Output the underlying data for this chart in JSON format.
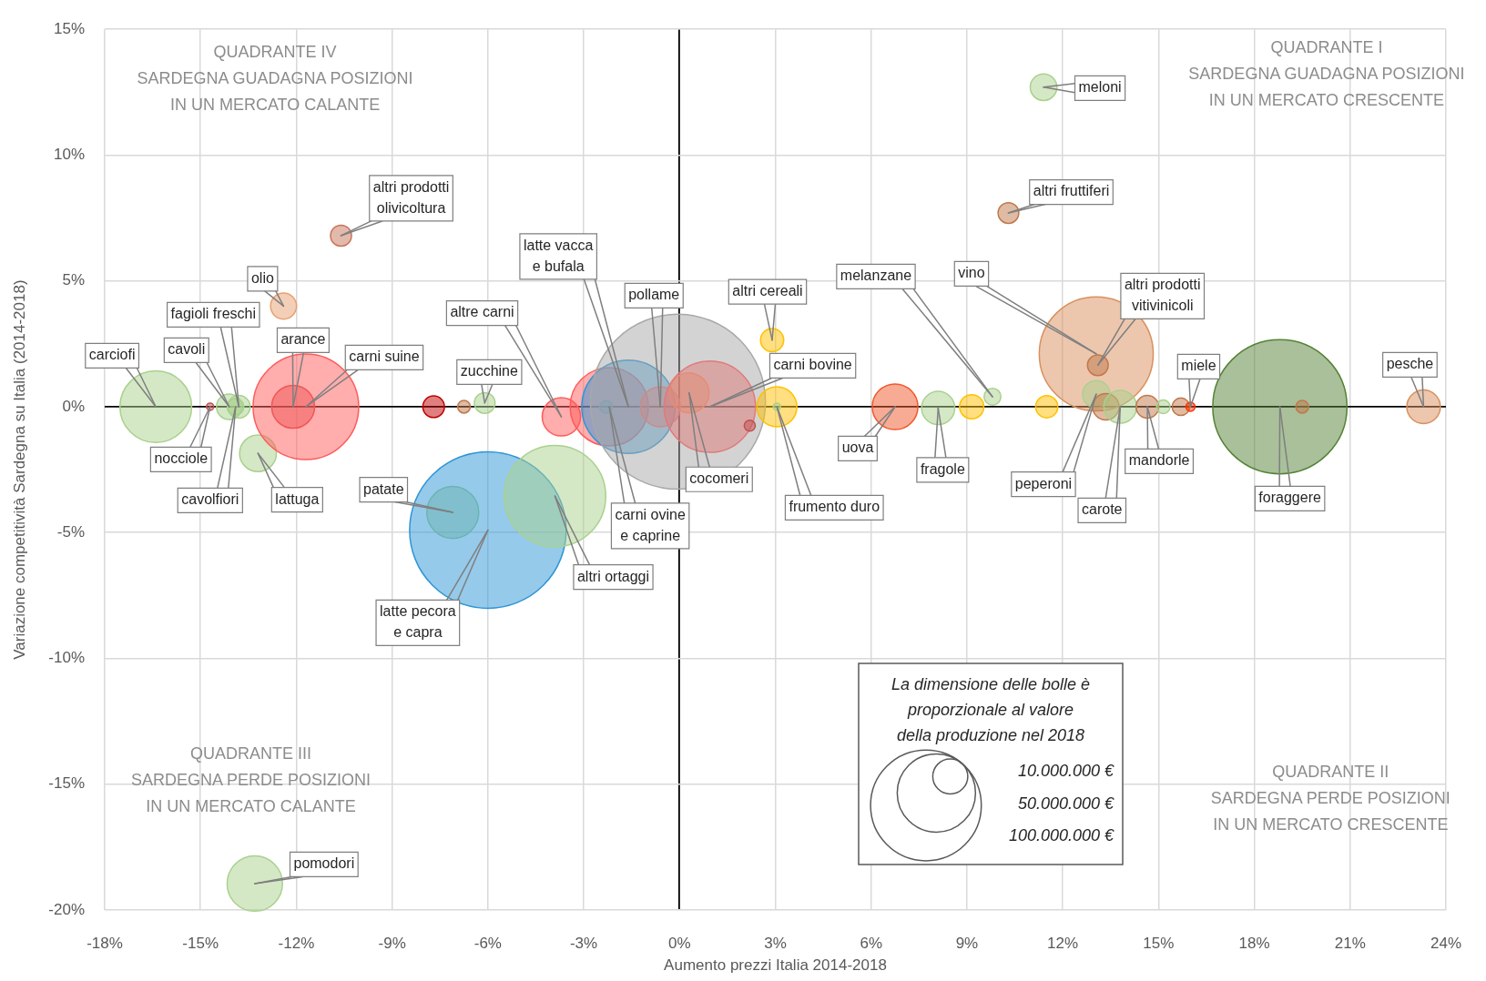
{
  "chart_data": {
    "type": "bubble",
    "xlabel": "Aumento prezzi Italia 2014-2018",
    "ylabel": "Variazione competitività Sardegna su Italia (2014-2018)",
    "legend_title": "La dimensione delle bolle è\nproporzionale al valore\ndella produzione nel 2018",
    "x": [
      -16.4,
      -14.7,
      -14.1,
      -13.9,
      -13.8,
      -13.2,
      -12.4,
      -12.1,
      -11.7,
      -10.6,
      -7.7,
      -6.75,
      -6.1,
      -13.3,
      -7.1,
      -6,
      -3.9,
      -3.7,
      -2.2,
      -2.3,
      -1.6,
      -0.6,
      -0.05,
      0.3,
      0.95,
      2.2,
      2.9,
      3.05,
      3.05,
      6.75,
      8.1,
      9.15,
      9.8,
      10.3,
      11.5,
      11.4,
      13.05,
      13.1,
      13.05,
      13.35,
      13.8,
      14.65,
      15.15,
      15.7,
      16,
      18.8,
      19.5,
      23.3
    ],
    "values": [
      0,
      0,
      0,
      0,
      0,
      -1.85,
      4,
      0,
      0,
      6.8,
      0,
      0,
      0.15,
      -18.95,
      -4.2,
      -4.9,
      -3.55,
      -0.4,
      0,
      0,
      0,
      0,
      0.2,
      0.55,
      0,
      -0.75,
      2.65,
      0,
      0,
      0,
      -0.05,
      0,
      0.4,
      7.7,
      0,
      12.7,
      2.1,
      1.65,
      0.5,
      0,
      0,
      0,
      0,
      0,
      0,
      0,
      0,
      0
    ],
    "sizes": [
      42000000,
      430000,
      5300000,
      2200000,
      4200000,
      11000000,
      5500000,
      15000000,
      91000000,
      3600000,
      3800000,
      1300000,
      3500000,
      25000000,
      22000000,
      200000000,
      84000000,
      12000000,
      50000000,
      1300000,
      71000000,
      13000000,
      250000000,
      13000000,
      68000000,
      1000000,
      4400000,
      13000000,
      430000,
      17000000,
      9000000,
      4800000,
      2300000,
      3500000,
      4000000,
      5800000,
      106000000,
      3500000,
      6100000,
      5700000,
      8800000,
      4200000,
      1500000,
      2500000,
      680000,
      147000000,
      1300000,
      9200000
    ],
    "colors": [
      "#a9d18e",
      "#c0504d",
      "#a9d18e",
      "#a9d18e",
      "#a9d18e",
      "#a9d18e",
      "#e8a070",
      "#e05050",
      "#ff5b5b",
      "#c8735a",
      "#c00000",
      "#c0784a",
      "#a9d18e",
      "#a9d18e",
      "#a9d18e",
      "#2e95d6",
      "#a9d18e",
      "#ff5b5b",
      "#ff5b5b",
      "#a0a0a0",
      "#2e95d6",
      "#e87070",
      "#a8a8a8",
      "#e8a070",
      "#e07a7a",
      "#c0504d",
      "#ffc000",
      "#ffc000",
      "#a9d18e",
      "#f0582a",
      "#a9d18e",
      "#ffc000",
      "#a9d18e",
      "#c0784a",
      "#ffc000",
      "#a9d18e",
      "#d9905e",
      "#c0784a",
      "#a9d18e",
      "#c0784a",
      "#a9d18e",
      "#c0784a",
      "#a9d18e",
      "#c0784a",
      "#ff3300",
      "#548235",
      "#c0784a",
      "#d9905e"
    ],
    "size_legend": [
      {
        "value": 10000000,
        "label": "10.000.000 €"
      },
      {
        "value": 50000000,
        "label": "50.000.000 €"
      },
      {
        "value": 100000000,
        "label": "100.000.000 €"
      }
    ],
    "xlim": [
      -18,
      24
    ],
    "xticks": [
      {
        "value": -18,
        "label": "-18%"
      },
      {
        "value": -15,
        "label": "-15%"
      },
      {
        "value": -12,
        "label": "-12%"
      },
      {
        "value": -9,
        "label": "-9%"
      },
      {
        "value": -6,
        "label": "-6%"
      },
      {
        "value": -3,
        "label": "-3%"
      },
      {
        "value": 0,
        "label": "0%"
      },
      {
        "value": 3,
        "label": "3%"
      },
      {
        "value": 6,
        "label": "6%"
      },
      {
        "value": 9,
        "label": "9%"
      },
      {
        "value": 12,
        "label": "12%"
      },
      {
        "value": 15,
        "label": "15%"
      },
      {
        "value": 18,
        "label": "18%"
      },
      {
        "value": 21,
        "label": "21%"
      },
      {
        "value": 24,
        "label": "24%"
      }
    ],
    "ylim": [
      -20,
      15
    ],
    "yticks": [
      {
        "value": -20,
        "label": "-20%"
      },
      {
        "value": -15,
        "label": "-15%"
      },
      {
        "value": -10,
        "label": "-10%"
      },
      {
        "value": -5,
        "label": "-5%"
      },
      {
        "value": 0,
        "label": "0%"
      },
      {
        "value": 5,
        "label": "5%"
      },
      {
        "value": 10,
        "label": "10%"
      },
      {
        "value": 15,
        "label": "15%"
      }
    ],
    "grid": true,
    "annotations": [
      "QUADRANTE IV\nSARDEGNA GUADAGNA POSIZIONI\nIN UN MERCATO CALANTE",
      "QUADRANTE I\nSARDEGNA GUADAGNA POSIZIONI\nIN UN MERCATO CRESCENTE",
      "QUADRANTE III\nSARDEGNA PERDE POSIZIONI\nIN UN MERCATO CALANTE",
      "QUADRANTE II\nSARDEGNA PERDE POSIZIONI\nIN UN MERCATO CRESCENTE",
      {
        "text": "carciofi",
        "x": -16.4,
        "y": 0
      },
      {
        "text": "nocciole",
        "x": -14.7,
        "y": 0
      },
      {
        "text": "cavoli",
        "x": -14.1,
        "y": 0
      },
      {
        "text": "cavolfiori",
        "x": -13.9,
        "y": 0
      },
      {
        "text": "fagioli freschi",
        "x": -13.8,
        "y": 0
      },
      {
        "text": "lattuga",
        "x": -13.2,
        "y": -1.85
      },
      {
        "text": "olio",
        "x": -12.4,
        "y": 4
      },
      {
        "text": "arance",
        "x": -12.1,
        "y": 0
      },
      {
        "text": "carni suine",
        "x": -11.7,
        "y": 0
      },
      {
        "text": "altri prodotti\nolivicoltura",
        "x": -10.6,
        "y": 6.8
      },
      {
        "text": "zucchine",
        "x": -6.1,
        "y": 0.15
      },
      {
        "text": "pomodori",
        "x": -13.3,
        "y": -18.95
      },
      {
        "text": "patate",
        "x": -7.1,
        "y": -4.2
      },
      {
        "text": "latte pecora\ne capra",
        "x": -6,
        "y": -4.9
      },
      {
        "text": "altri ortaggi",
        "x": -3.9,
        "y": -3.55
      },
      {
        "text": "altre carni",
        "x": -3.7,
        "y": -0.4
      },
      {
        "text": "carni ovine\ne caprine",
        "x": -2.2,
        "y": 0
      },
      {
        "text": "latte vacca\ne bufala",
        "x": -1.6,
        "y": 0
      },
      {
        "text": "pollame",
        "x": -0.6,
        "y": 0
      },
      {
        "text": "cocomeri",
        "x": 0.3,
        "y": 0.55
      },
      {
        "text": "carni bovine",
        "x": 0.95,
        "y": 0
      },
      {
        "text": "altri cereali",
        "x": 2.9,
        "y": 2.65
      },
      {
        "text": "frumento duro",
        "x": 3.05,
        "y": 0
      },
      {
        "text": "uova",
        "x": 6.75,
        "y": 0
      },
      {
        "text": "fragole",
        "x": 8.1,
        "y": -0.05
      },
      {
        "text": "melanzane",
        "x": 9.8,
        "y": 0.4
      },
      {
        "text": "altri fruttiferi",
        "x": 10.3,
        "y": 7.7
      },
      {
        "text": "meloni",
        "x": 11.4,
        "y": 12.7
      },
      {
        "text": "vino",
        "x": 13.05,
        "y": 2.1
      },
      {
        "text": "altri prodotti\nvitivinicoli",
        "x": 13.1,
        "y": 1.65
      },
      {
        "text": "peperoni",
        "x": 13.05,
        "y": 0.5
      },
      {
        "text": "carote",
        "x": 13.8,
        "y": 0
      },
      {
        "text": "mandorle",
        "x": 14.65,
        "y": 0
      },
      {
        "text": "miele",
        "x": 16,
        "y": 0
      },
      {
        "text": "foraggere",
        "x": 18.8,
        "y": 0
      },
      {
        "text": "pesche",
        "x": 23.3,
        "y": 0
      }
    ]
  }
}
